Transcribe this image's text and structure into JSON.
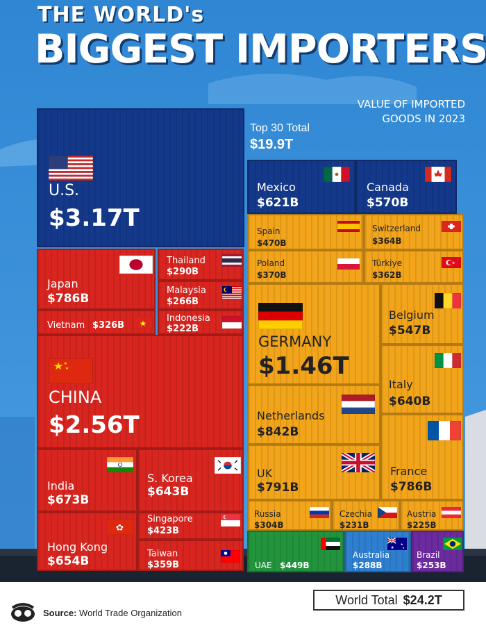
{
  "header": {
    "title_line1": "THE WORLD's",
    "title_line2": "BIGGEST IMPORTERS",
    "subtitle_line1": "VALUE OF IMPORTED",
    "subtitle_line2": "GOODS IN 2023",
    "top30_label": "Top 30 Total",
    "top30_value": "$19.9T"
  },
  "footer": {
    "source_label": "Source:",
    "source_text": "World Trade Organization",
    "world_total_label": "World Total",
    "world_total_value": "$24.2T"
  },
  "colors": {
    "north_america": "#14398a",
    "asia": "#d8251f",
    "europe": "#f2a51a",
    "middle_east": "#23943e",
    "oceania": "#2e7fd0",
    "south_america": "#6b2a9e",
    "background": "#3a8fd6"
  },
  "chart_data": {
    "type": "treemap",
    "unit": "USD",
    "title": "THE WORLD's BIGGEST IMPORTERS",
    "subtitle": "VALUE OF IMPORTED GOODS IN 2023",
    "total_top30": "$19.9T",
    "world_total": "$24.2T",
    "items": [
      {
        "country": "U.S.",
        "label": "$3.17T",
        "value": 3170,
        "region": "north_america",
        "flag": "us-flag-icon"
      },
      {
        "country": "CHINA",
        "label": "$2.56T",
        "value": 2560,
        "region": "asia",
        "flag": "china-flag-icon"
      },
      {
        "country": "GERMANY",
        "label": "$1.46T",
        "value": 1460,
        "region": "europe",
        "flag": "germany-flag-icon"
      },
      {
        "country": "Netherlands",
        "label": "$842B",
        "value": 842,
        "region": "europe",
        "flag": "netherlands-flag-icon"
      },
      {
        "country": "UK",
        "label": "$791B",
        "value": 791,
        "region": "europe",
        "flag": "uk-flag-icon"
      },
      {
        "country": "Japan",
        "label": "$786B",
        "value": 786,
        "region": "asia",
        "flag": "japan-flag-icon"
      },
      {
        "country": "France",
        "label": "$786B",
        "value": 786,
        "region": "europe",
        "flag": "france-flag-icon"
      },
      {
        "country": "India",
        "label": "$673B",
        "value": 673,
        "region": "asia",
        "flag": "india-flag-icon"
      },
      {
        "country": "Hong Kong",
        "label": "$654B",
        "value": 654,
        "region": "asia",
        "flag": "hong-kong-flag-icon"
      },
      {
        "country": "S. Korea",
        "label": "$643B",
        "value": 643,
        "region": "asia",
        "flag": "south-korea-flag-icon"
      },
      {
        "country": "Italy",
        "label": "$640B",
        "value": 640,
        "region": "europe",
        "flag": "italy-flag-icon"
      },
      {
        "country": "Mexico",
        "label": "$621B",
        "value": 621,
        "region": "north_america",
        "flag": "mexico-flag-icon"
      },
      {
        "country": "Canada",
        "label": "$570B",
        "value": 570,
        "region": "north_america",
        "flag": "canada-flag-icon"
      },
      {
        "country": "Belgium",
        "label": "$547B",
        "value": 547,
        "region": "europe",
        "flag": "belgium-flag-icon"
      },
      {
        "country": "Spain",
        "label": "$470B",
        "value": 470,
        "region": "europe",
        "flag": "spain-flag-icon"
      },
      {
        "country": "UAE",
        "label": "$449B",
        "value": 449,
        "region": "middle_east",
        "flag": "uae-flag-icon"
      },
      {
        "country": "Singapore",
        "label": "$423B",
        "value": 423,
        "region": "asia",
        "flag": "singapore-flag-icon"
      },
      {
        "country": "Poland",
        "label": "$370B",
        "value": 370,
        "region": "europe",
        "flag": "poland-flag-icon"
      },
      {
        "country": "Switzerland",
        "label": "$364B",
        "value": 364,
        "region": "europe",
        "flag": "switzerland-flag-icon"
      },
      {
        "country": "Türkiye",
        "label": "$362B",
        "value": 362,
        "region": "europe",
        "flag": "turkiye-flag-icon"
      },
      {
        "country": "Taiwan",
        "label": "$359B",
        "value": 359,
        "region": "asia",
        "flag": "taiwan-flag-icon"
      },
      {
        "country": "Vietnam",
        "label": "$326B",
        "value": 326,
        "region": "asia",
        "flag": "vietnam-flag-icon"
      },
      {
        "country": "Russia",
        "label": "$304B",
        "value": 304,
        "region": "europe",
        "flag": "russia-flag-icon"
      },
      {
        "country": "Thailand",
        "label": "$290B",
        "value": 290,
        "region": "asia",
        "flag": "thailand-flag-icon"
      },
      {
        "country": "Australia",
        "label": "$288B",
        "value": 288,
        "region": "oceania",
        "flag": "australia-flag-icon"
      },
      {
        "country": "Malaysia",
        "label": "$266B",
        "value": 266,
        "region": "asia",
        "flag": "malaysia-flag-icon"
      },
      {
        "country": "Brazil",
        "label": "$253B",
        "value": 253,
        "region": "south_america",
        "flag": "brazil-flag-icon"
      },
      {
        "country": "Czechia",
        "label": "$231B",
        "value": 231,
        "region": "europe",
        "flag": "czechia-flag-icon"
      },
      {
        "country": "Austria",
        "label": "$225B",
        "value": 225,
        "region": "europe",
        "flag": "austria-flag-icon"
      },
      {
        "country": "Indonesia",
        "label": "$222B",
        "value": 222,
        "region": "asia",
        "flag": "indonesia-flag-icon"
      }
    ]
  }
}
